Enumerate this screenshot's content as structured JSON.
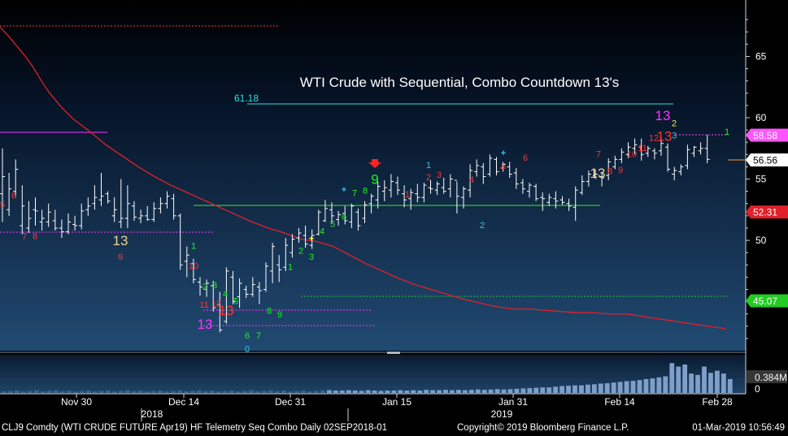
{
  "chart_data": {
    "type": "ohlc",
    "title": "WTI Crude with Sequential, Combo Countdown 13's",
    "y_axis": {
      "min": 41,
      "max": 69.6,
      "ticks": [
        50,
        55,
        60,
        65
      ]
    },
    "volume_axis": {
      "ticks": [
        "0.384M",
        "0"
      ],
      "max_m": 1.1
    },
    "x_ticks": [
      "Nov 30",
      "Dec 14",
      "Dec 31",
      "Jan 15",
      "Jan 31",
      "Feb 14",
      "Feb 28"
    ],
    "year_labels": [
      "2018",
      "2019"
    ],
    "price_tags": [
      {
        "label": "58.58",
        "value": 58.58,
        "color": "#ff55ff"
      },
      {
        "label": "56.56",
        "value": 56.56,
        "color": "#ffffff"
      },
      {
        "label": "52.31",
        "value": 52.31,
        "color": "#e0202a"
      },
      {
        "label": "45.07",
        "value": 45.07,
        "color": "#22cc22"
      }
    ],
    "fib_label": "61.18",
    "bars": [
      [
        57.5,
        51.5,
        53.8,
        55.2
      ],
      [
        55.5,
        52.0,
        52.5,
        54.2
      ],
      [
        56.6,
        53.5,
        54.0,
        55.8
      ],
      [
        54.5,
        50.5,
        51.2,
        52.8
      ],
      [
        53.2,
        50.6,
        51.0,
        51.8
      ],
      [
        53.5,
        51.2,
        52.5,
        52.4
      ],
      [
        52.5,
        50.8,
        51.5,
        51.8
      ],
      [
        53.0,
        51.1,
        51.5,
        52.3
      ],
      [
        52.5,
        50.8,
        51.6,
        51.0
      ],
      [
        51.7,
        50.2,
        51.0,
        50.7
      ],
      [
        52.2,
        50.5,
        50.7,
        51.5
      ],
      [
        52.0,
        50.8,
        51.3,
        51.2
      ],
      [
        53.0,
        50.9,
        51.2,
        52.4
      ],
      [
        53.5,
        52.0,
        52.5,
        52.8
      ],
      [
        54.5,
        52.5,
        53.0,
        53.5
      ],
      [
        55.5,
        52.8,
        53.3,
        53.6
      ],
      [
        54.0,
        53.0,
        53.8,
        53.2
      ],
      [
        53.5,
        51.5,
        52.0,
        52.5
      ],
      [
        55.0,
        51.0,
        51.5,
        51.8
      ],
      [
        54.5,
        51.0,
        51.8,
        53.0
      ],
      [
        53.2,
        51.6,
        52.8,
        51.9
      ],
      [
        52.5,
        51.4,
        51.8,
        52.0
      ],
      [
        52.8,
        51.6,
        52.0,
        51.7
      ],
      [
        53.1,
        51.5,
        51.7,
        52.6
      ],
      [
        53.5,
        52.2,
        52.6,
        53.0
      ],
      [
        54.0,
        52.6,
        53.0,
        53.6
      ],
      [
        53.8,
        51.7,
        53.4,
        52.0
      ],
      [
        52.2,
        47.6,
        52.0,
        48.0
      ],
      [
        49.5,
        47.0,
        48.3,
        48.8
      ],
      [
        48.5,
        46.5,
        48.1,
        46.8
      ],
      [
        47.0,
        45.5,
        46.6,
        46.2
      ],
      [
        46.8,
        45.4,
        46.0,
        46.5
      ],
      [
        46.7,
        44.2,
        46.3,
        44.5
      ],
      [
        45.8,
        42.5,
        44.8,
        42.7
      ],
      [
        47.8,
        43.2,
        43.4,
        47.5
      ],
      [
        47.5,
        44.8,
        47.0,
        45.0
      ],
      [
        46.9,
        44.5,
        45.4,
        46.5
      ],
      [
        46.3,
        45.3,
        46.0,
        45.6
      ],
      [
        47.0,
        45.4,
        45.6,
        46.4
      ],
      [
        46.6,
        44.8,
        46.2,
        45.9
      ],
      [
        48.2,
        45.8,
        46.0,
        47.9
      ],
      [
        49.8,
        46.5,
        47.5,
        49.5
      ],
      [
        48.8,
        46.6,
        48.0,
        47.6
      ],
      [
        50.2,
        47.5,
        47.8,
        49.6
      ],
      [
        50.5,
        48.6,
        49.0,
        50.1
      ],
      [
        51.0,
        49.8,
        50.2,
        50.6
      ],
      [
        51.2,
        49.4,
        50.4,
        49.7
      ],
      [
        50.9,
        49.3,
        49.6,
        50.4
      ],
      [
        52.5,
        50.4,
        50.5,
        52.3
      ],
      [
        53.3,
        51.5,
        51.6,
        52.6
      ],
      [
        53.1,
        51.4,
        52.5,
        52.0
      ],
      [
        52.4,
        51.2,
        51.7,
        52.1
      ],
      [
        52.8,
        51.3,
        52.2,
        51.6
      ],
      [
        53.0,
        51.0,
        51.5,
        52.8
      ],
      [
        52.6,
        50.8,
        52.3,
        51.2
      ],
      [
        53.2,
        51.4,
        51.8,
        52.9
      ],
      [
        53.8,
        52.2,
        53.0,
        53.6
      ],
      [
        54.8,
        52.6,
        53.3,
        54.4
      ],
      [
        54.9,
        53.2,
        54.0,
        54.3
      ],
      [
        55.4,
        53.5,
        54.1,
        54.8
      ],
      [
        55.2,
        53.7,
        54.7,
        54.1
      ],
      [
        54.5,
        52.7,
        53.8,
        53.3
      ],
      [
        54.2,
        52.5,
        53.4,
        53.9
      ],
      [
        54.6,
        53.1,
        53.8,
        53.5
      ],
      [
        54.7,
        53.1,
        53.5,
        54.5
      ],
      [
        54.9,
        53.8,
        54.3,
        54.2
      ],
      [
        54.8,
        53.7,
        54.1,
        54.6
      ],
      [
        55.1,
        53.8,
        54.3,
        54.0
      ],
      [
        55.4,
        53.5,
        54.2,
        55.0
      ],
      [
        54.8,
        52.2,
        54.9,
        53.6
      ],
      [
        54.4,
        52.6,
        53.5,
        54.2
      ],
      [
        56.2,
        53.5,
        54.1,
        55.7
      ],
      [
        56.6,
        55.2,
        55.6,
        56.1
      ],
      [
        56.3,
        54.6,
        56.0,
        55.2
      ],
      [
        57.0,
        55.2,
        55.4,
        56.7
      ],
      [
        56.8,
        55.3,
        56.6,
        55.6
      ],
      [
        56.4,
        55.6,
        55.9,
        56.2
      ],
      [
        56.4,
        55.1,
        56.0,
        55.4
      ],
      [
        55.9,
        54.2,
        55.5,
        54.6
      ],
      [
        55.0,
        53.8,
        54.7,
        54.2
      ],
      [
        54.7,
        53.5,
        54.0,
        54.5
      ],
      [
        54.6,
        53.2,
        54.4,
        53.4
      ],
      [
        53.9,
        52.4,
        53.5,
        53.4
      ],
      [
        53.8,
        52.8,
        53.1,
        53.5
      ],
      [
        54.0,
        52.6,
        53.4,
        53.2
      ],
      [
        53.6,
        52.9,
        53.3,
        53.1
      ],
      [
        53.4,
        52.4,
        53.0,
        52.8
      ],
      [
        54.4,
        51.6,
        52.7,
        54.1
      ],
      [
        55.3,
        53.7,
        53.9,
        54.8
      ],
      [
        55.7,
        54.4,
        54.8,
        55.4
      ],
      [
        55.8,
        55.0,
        55.3,
        55.4
      ],
      [
        55.6,
        54.4,
        55.2,
        55.1
      ],
      [
        56.7,
        54.9,
        55.3,
        56.4
      ],
      [
        56.9,
        55.8,
        56.0,
        56.6
      ],
      [
        57.5,
        56.3,
        56.6,
        57.2
      ],
      [
        58.0,
        56.7,
        57.0,
        57.6
      ],
      [
        58.3,
        57.0,
        57.5,
        57.8
      ],
      [
        58.3,
        56.5,
        57.6,
        57.0
      ],
      [
        57.7,
        56.8,
        57.1,
        57.5
      ],
      [
        57.5,
        56.6,
        57.3,
        57.1
      ],
      [
        58.4,
        56.9,
        57.3,
        57.9
      ],
      [
        57.9,
        55.6,
        57.6,
        55.8
      ],
      [
        56.0,
        54.9,
        55.4,
        55.7
      ],
      [
        56.2,
        55.3,
        55.6,
        56.0
      ],
      [
        57.8,
        55.8,
        56.1,
        57.4
      ],
      [
        57.7,
        56.8,
        57.1,
        57.6
      ],
      [
        58.0,
        57.0,
        57.3,
        57.5
      ],
      [
        58.6,
        56.3,
        57.5,
        56.6
      ]
    ],
    "ma": [
      [
        0,
        67.4
      ],
      [
        10,
        66.7
      ],
      [
        20,
        65.9
      ],
      [
        30,
        65.1
      ],
      [
        40,
        64.2
      ],
      [
        50,
        63.1
      ],
      [
        60,
        62.1
      ],
      [
        75,
        60.9
      ],
      [
        90,
        59.9
      ],
      [
        110,
        58.9
      ],
      [
        130,
        57.8
      ],
      [
        150,
        56.9
      ],
      [
        170,
        56.0
      ],
      [
        190,
        55.2
      ],
      [
        210,
        54.5
      ],
      [
        230,
        53.9
      ],
      [
        250,
        53.3
      ],
      [
        270,
        52.7
      ],
      [
        290,
        52.1
      ],
      [
        310,
        51.5
      ],
      [
        330,
        51.0
      ],
      [
        350,
        50.6
      ],
      [
        370,
        50.1
      ],
      [
        390,
        49.9
      ],
      [
        410,
        49.5
      ],
      [
        430,
        48.8
      ],
      [
        450,
        48.1
      ],
      [
        470,
        47.5
      ],
      [
        490,
        46.9
      ],
      [
        510,
        46.4
      ],
      [
        530,
        46.0
      ],
      [
        550,
        45.6
      ],
      [
        570,
        45.2
      ],
      [
        590,
        44.9
      ],
      [
        610,
        44.6
      ],
      [
        630,
        44.4
      ],
      [
        650,
        44.4
      ],
      [
        670,
        44.3
      ],
      [
        690,
        44.2
      ],
      [
        710,
        44.1
      ],
      [
        730,
        44.1
      ],
      [
        750,
        44.0
      ],
      [
        770,
        44.0
      ],
      [
        790,
        43.8
      ],
      [
        810,
        43.6
      ],
      [
        830,
        43.4
      ],
      [
        850,
        43.2
      ],
      [
        870,
        43.0
      ],
      [
        892,
        42.8
      ]
    ],
    "volume": [
      0.08,
      0.07,
      0.07,
      0.08,
      0.07,
      0.06,
      0.08,
      0.07,
      0.06,
      0.07,
      0.07,
      0.08,
      0.07,
      0.08,
      0.07,
      0.09,
      0.08,
      0.08,
      0.09,
      0.08,
      0.09,
      0.08,
      0.09,
      0.1,
      0.09,
      0.1,
      0.11,
      0.1,
      0.11,
      0.12,
      0.13,
      0.14,
      0.15,
      0.16,
      0.16,
      0.18,
      0.2,
      0.21,
      0.22,
      0.22,
      0.24,
      0.25,
      0.27,
      0.28,
      0.3,
      0.32,
      0.34,
      0.35,
      0.37,
      0.4,
      0.42,
      0.45,
      0.48,
      0.86,
      0.76,
      0.82,
      0.56,
      0.52,
      0.76,
      0.58,
      0.64,
      0.56,
      0.4
    ],
    "annotations": [
      {
        "t": "5",
        "c": "#ff3333",
        "v": 52.7,
        "x": 3
      },
      {
        "t": "6",
        "c": "#ff3333",
        "v": 53.4,
        "x": 17
      },
      {
        "t": "7",
        "c": "#ff3333",
        "v": 50.1,
        "x": 30
      },
      {
        "t": "8",
        "c": "#ff3333",
        "v": 50.1,
        "x": 43
      },
      {
        "t": "13",
        "c": "#f0d090",
        "v": 49.6,
        "x": 148
      },
      {
        "t": "9",
        "c": "#ff3333",
        "v": 48.4,
        "x": 148
      },
      {
        "t": "1",
        "c": "#22ee22",
        "v": 49.3,
        "x": 238
      },
      {
        "t": "10",
        "c": "#ff3333",
        "v": 47.7,
        "x": 238
      },
      {
        "t": "2",
        "c": "#22ee22",
        "v": 46.0,
        "x": 252
      },
      {
        "t": "3",
        "c": "#22ee22",
        "v": 46.1,
        "x": 264
      },
      {
        "t": "4",
        "c": "#22ee22",
        "v": 45.4,
        "x": 277
      },
      {
        "t": "5",
        "c": "#22ee22",
        "v": 44.8,
        "x": 290
      },
      {
        "t": "11",
        "c": "#ff3333",
        "v": 44.5,
        "x": 251
      },
      {
        "t": "12",
        "c": "#ff3333",
        "v": 44.6,
        "x": 266
      },
      {
        "t": "13",
        "c": "#ff3333",
        "v": 43.9,
        "x": 278
      },
      {
        "t": "13",
        "c": "#ff33ff",
        "v": 42.8,
        "x": 252
      },
      {
        "t": "8",
        "c": "#22ee22",
        "v": 44.0,
        "x": 331
      },
      {
        "t": "9",
        "c": "#22ee22",
        "v": 43.7,
        "x": 344
      },
      {
        "t": "6",
        "c": "#22ee22",
        "v": 42.0,
        "x": 304
      },
      {
        "t": "7",
        "c": "#22ee22",
        "v": 42.0,
        "x": 318
      },
      {
        "t": "0",
        "c": "#22ccee",
        "v": 40.9,
        "x": 304
      },
      {
        "t": "1",
        "c": "#22ee22",
        "v": 47.6,
        "x": 357
      },
      {
        "t": "2",
        "c": "#22ee22",
        "v": 48.9,
        "x": 370
      },
      {
        "t": "3",
        "c": "#22ee22",
        "v": 48.4,
        "x": 383
      },
      {
        "t": "+",
        "c": "#ffee33",
        "v": 49.9,
        "x": 383
      },
      {
        "t": "4",
        "c": "#22ee22",
        "v": 50.5,
        "x": 396
      },
      {
        "t": "5",
        "c": "#22ee22",
        "v": 51.1,
        "x": 409
      },
      {
        "t": "6",
        "c": "#22ee22",
        "v": 51.7,
        "x": 423
      },
      {
        "t": "+",
        "c": "#22ccee",
        "v": 53.9,
        "x": 423
      },
      {
        "t": "7",
        "c": "#22ee22",
        "v": 53.6,
        "x": 436
      },
      {
        "t": "8",
        "c": "#22ee22",
        "v": 53.8,
        "x": 449
      },
      {
        "t": "9",
        "c": "#22ee22",
        "v": 54.6,
        "x": 461
      },
      {
        "t": "1",
        "c": "#ff3333",
        "v": 53.5,
        "x": 501
      },
      {
        "t": "1",
        "c": "#22ccee",
        "v": 55.9,
        "x": 527
      },
      {
        "t": "2",
        "c": "#ff3333",
        "v": 54.9,
        "x": 527
      },
      {
        "t": "3",
        "c": "#ff3333",
        "v": 55.1,
        "x": 540
      },
      {
        "t": "4",
        "c": "#ff3333",
        "v": 54.7,
        "x": 580
      },
      {
        "t": "2",
        "c": "#22ccee",
        "v": 51.0,
        "x": 593
      },
      {
        "t": "+",
        "c": "#22ccee",
        "v": 56.9,
        "x": 619
      },
      {
        "t": "5",
        "c": "#ff3333",
        "v": 55.8,
        "x": 619
      },
      {
        "t": "6",
        "c": "#ff3333",
        "v": 56.5,
        "x": 646
      },
      {
        "t": "13",
        "c": "#f0d090",
        "v": 55.1,
        "x": 735
      },
      {
        "t": "7",
        "c": "#ff3333",
        "v": 56.8,
        "x": 736
      },
      {
        "t": "8",
        "c": "#ff3333",
        "v": 55.4,
        "x": 750
      },
      {
        "t": "9",
        "c": "#ff3333",
        "v": 55.5,
        "x": 763
      },
      {
        "t": "10",
        "c": "#ff3333",
        "v": 56.8,
        "x": 777
      },
      {
        "t": "11",
        "c": "#ff3333",
        "v": 57.3,
        "x": 790
      },
      {
        "t": "12",
        "c": "#ff3333",
        "v": 58.1,
        "x": 804
      },
      {
        "t": "13",
        "c": "#ff3333",
        "v": 58.1,
        "x": 817
      },
      {
        "t": "13",
        "c": "#ff33ff",
        "v": 59.8,
        "x": 815
      },
      {
        "t": "2",
        "c": "#ffee33",
        "v": 59.3,
        "x": 829
      },
      {
        "t": "3",
        "c": "#22ccee",
        "v": 58.3,
        "x": 829
      },
      {
        "t": "1",
        "c": "#22ee22",
        "v": 58.6,
        "x": 894
      }
    ]
  },
  "status_bar": {
    "left": "CLJ9 Comdty (WTI CRUDE FUTURE  Apr19) HF Telemetry Seq Combo  Daily 02SEP2018-01",
    "center": "Copyright© 2019 Bloomberg Finance L.P.",
    "right": "01-Mar-2019 10:56:49"
  }
}
